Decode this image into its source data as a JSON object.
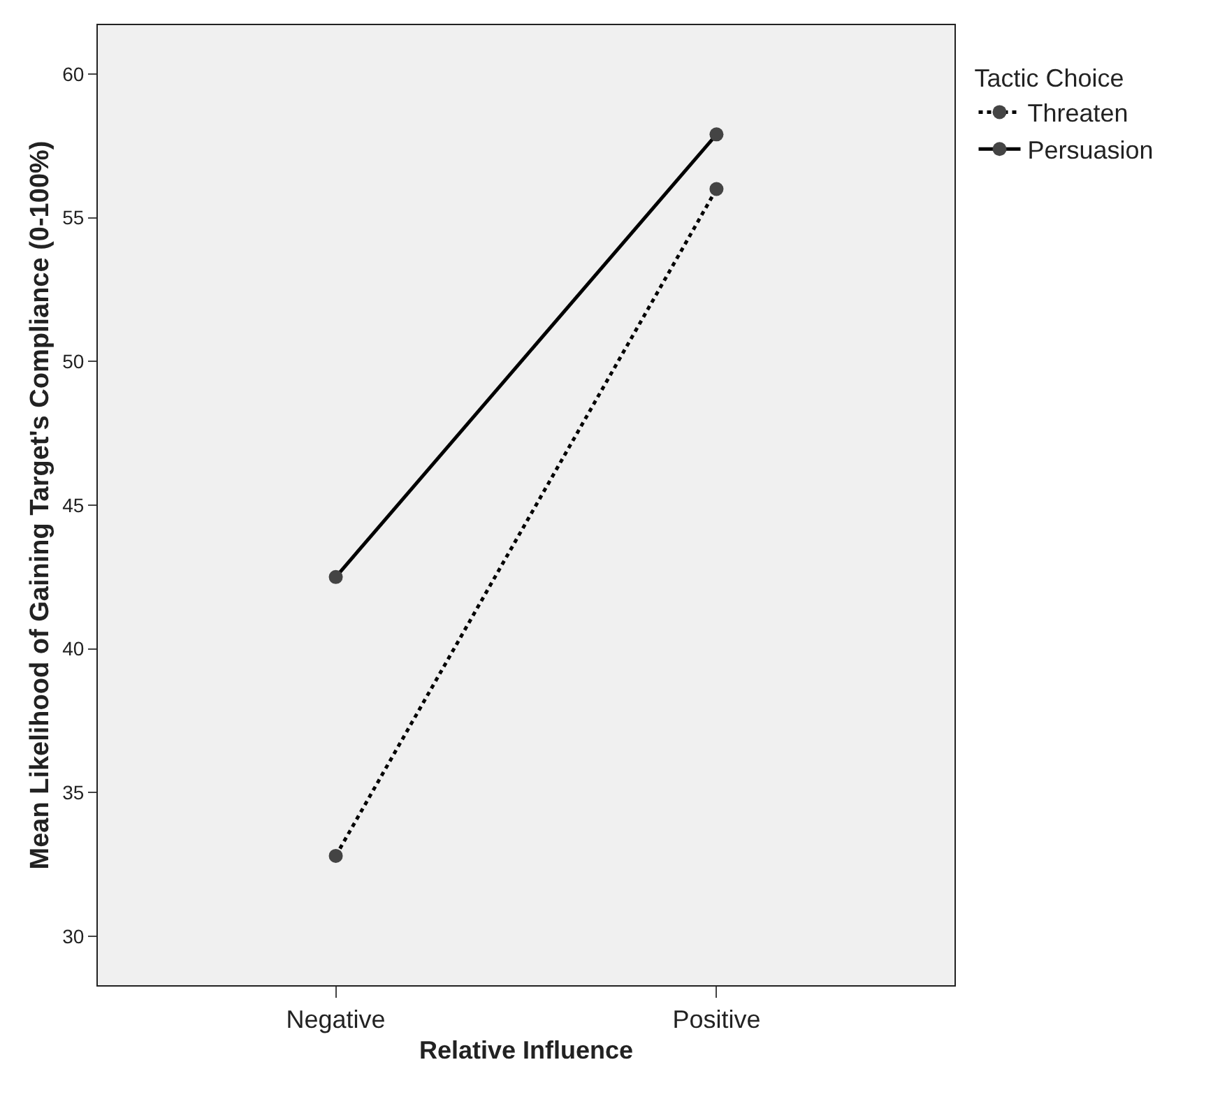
{
  "chart_data": {
    "type": "line",
    "xlabel": "Relative Influence",
    "ylabel": "Mean Likelihood of Gaining Target's Compliance (0-100%)",
    "legend_title": "Tactic Choice",
    "categories": [
      "Negative",
      "Positive"
    ],
    "series": [
      {
        "name": "Threaten",
        "color": "#000000",
        "values": [
          32.8,
          56.0
        ],
        "line_style": "dotted"
      },
      {
        "name": "Persuasion",
        "color": "#000000",
        "values": [
          42.5,
          57.9
        ],
        "line_style": "solid"
      }
    ],
    "marker": "circle",
    "ylim": [
      28.3,
      61.7
    ],
    "yticks": [
      30,
      35,
      40,
      45,
      50,
      55,
      60
    ],
    "grid": false,
    "legend": "top right"
  }
}
